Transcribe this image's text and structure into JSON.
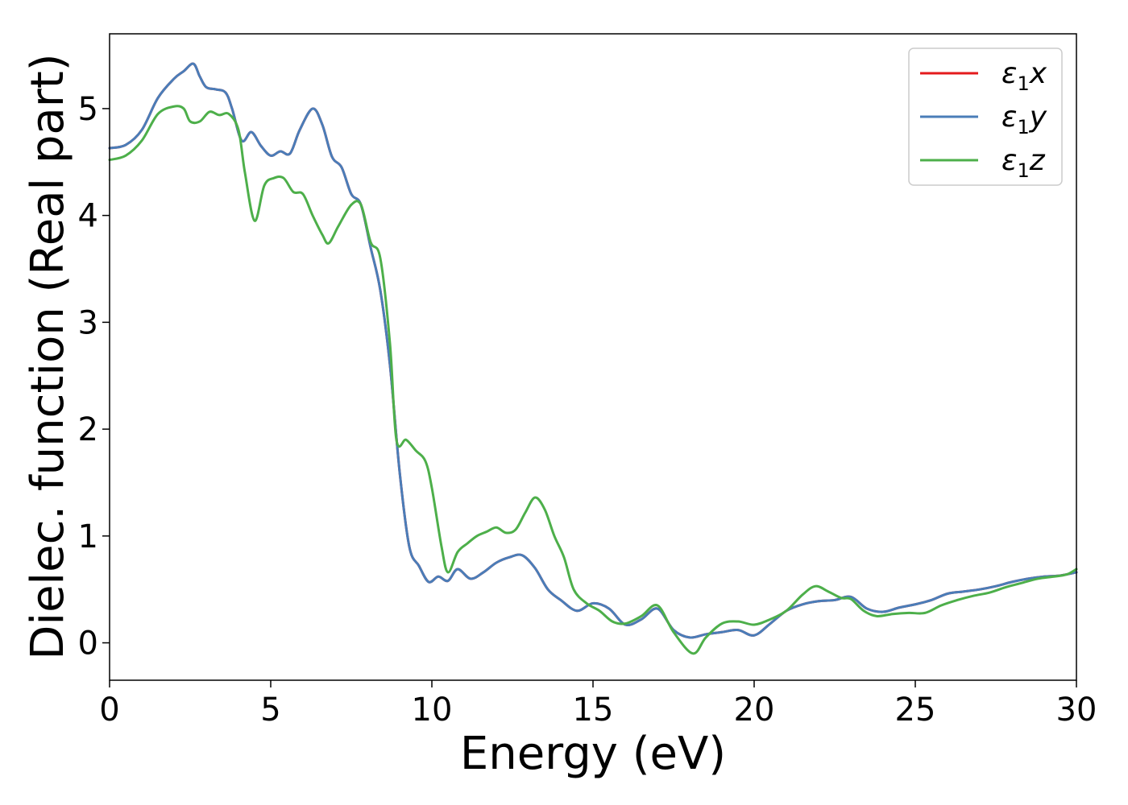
{
  "chart_data": {
    "type": "line",
    "xlabel": "Energy (eV)",
    "ylabel": "Dielec. function (Real part)",
    "xlim": [
      0,
      30
    ],
    "ylim": [
      -0.35,
      5.7
    ],
    "xticks": [
      0,
      5,
      10,
      15,
      20,
      25,
      30
    ],
    "yticks": [
      0,
      1,
      2,
      3,
      4,
      5
    ],
    "grid": false,
    "legend_position": "top-right",
    "series": [
      {
        "name": "ε₁x",
        "legend_main": "ε",
        "legend_sub": "1",
        "legend_suffix": "x",
        "color": "#e41a1c",
        "x": [
          0,
          0.5,
          1,
          1.5,
          2,
          2.3,
          2.6,
          2.8,
          3,
          3.3,
          3.6,
          3.8,
          4.1,
          4.4,
          4.7,
          5.0,
          5.3,
          5.6,
          5.9,
          6.3,
          6.6,
          6.9,
          7.2,
          7.5,
          7.8,
          8.1,
          8.4,
          8.7,
          9.0,
          9.3,
          9.6,
          9.9,
          10.2,
          10.5,
          10.8,
          11.2,
          11.6,
          12.0,
          12.4,
          12.8,
          13.2,
          13.6,
          14.0,
          14.5,
          15.0,
          15.5,
          16.0,
          16.5,
          17.0,
          17.5,
          18.0,
          18.5,
          19.0,
          19.5,
          20.0,
          20.5,
          21.0,
          21.5,
          22.0,
          22.5,
          23.0,
          23.5,
          24.0,
          24.5,
          25.0,
          25.5,
          26.0,
          26.5,
          27.0,
          27.5,
          28.0,
          28.5,
          29.0,
          29.5,
          30.0
        ],
        "y": [
          4.63,
          4.66,
          4.8,
          5.1,
          5.28,
          5.35,
          5.42,
          5.3,
          5.2,
          5.18,
          5.15,
          5.0,
          4.7,
          4.78,
          4.65,
          4.56,
          4.6,
          4.58,
          4.8,
          5.0,
          4.85,
          4.55,
          4.45,
          4.2,
          4.1,
          3.7,
          3.3,
          2.6,
          1.6,
          0.9,
          0.72,
          0.57,
          0.62,
          0.58,
          0.69,
          0.6,
          0.66,
          0.75,
          0.8,
          0.82,
          0.7,
          0.5,
          0.4,
          0.3,
          0.37,
          0.32,
          0.17,
          0.22,
          0.32,
          0.12,
          0.05,
          0.08,
          0.1,
          0.12,
          0.07,
          0.18,
          0.3,
          0.36,
          0.39,
          0.4,
          0.43,
          0.32,
          0.29,
          0.33,
          0.36,
          0.4,
          0.46,
          0.48,
          0.5,
          0.53,
          0.57,
          0.6,
          0.62,
          0.63,
          0.66
        ]
      },
      {
        "name": "ε₁y",
        "legend_main": "ε",
        "legend_sub": "1",
        "legend_suffix": "y",
        "color": "#4a7db8",
        "x": [
          0,
          0.5,
          1,
          1.5,
          2,
          2.3,
          2.6,
          2.8,
          3,
          3.3,
          3.6,
          3.8,
          4.1,
          4.4,
          4.7,
          5.0,
          5.3,
          5.6,
          5.9,
          6.3,
          6.6,
          6.9,
          7.2,
          7.5,
          7.8,
          8.1,
          8.4,
          8.7,
          9.0,
          9.3,
          9.6,
          9.9,
          10.2,
          10.5,
          10.8,
          11.2,
          11.6,
          12.0,
          12.4,
          12.8,
          13.2,
          13.6,
          14.0,
          14.5,
          15.0,
          15.5,
          16.0,
          16.5,
          17.0,
          17.5,
          18.0,
          18.5,
          19.0,
          19.5,
          20.0,
          20.5,
          21.0,
          21.5,
          22.0,
          22.5,
          23.0,
          23.5,
          24.0,
          24.5,
          25.0,
          25.5,
          26.0,
          26.5,
          27.0,
          27.5,
          28.0,
          28.5,
          29.0,
          29.5,
          30.0
        ],
        "y": [
          4.63,
          4.66,
          4.8,
          5.1,
          5.28,
          5.35,
          5.42,
          5.3,
          5.2,
          5.18,
          5.15,
          5.0,
          4.7,
          4.78,
          4.65,
          4.56,
          4.6,
          4.58,
          4.8,
          5.0,
          4.85,
          4.55,
          4.45,
          4.2,
          4.1,
          3.7,
          3.3,
          2.6,
          1.6,
          0.9,
          0.72,
          0.57,
          0.62,
          0.58,
          0.69,
          0.6,
          0.66,
          0.75,
          0.8,
          0.82,
          0.7,
          0.5,
          0.4,
          0.3,
          0.37,
          0.32,
          0.17,
          0.22,
          0.32,
          0.12,
          0.05,
          0.08,
          0.1,
          0.12,
          0.07,
          0.18,
          0.3,
          0.36,
          0.39,
          0.4,
          0.43,
          0.32,
          0.29,
          0.33,
          0.36,
          0.4,
          0.46,
          0.48,
          0.5,
          0.53,
          0.57,
          0.6,
          0.62,
          0.63,
          0.66
        ]
      },
      {
        "name": "ε₁z",
        "legend_main": "ε",
        "legend_sub": "1",
        "legend_suffix": "z",
        "color": "#4daf4a",
        "x": [
          0,
          0.5,
          1,
          1.5,
          2,
          2.3,
          2.5,
          2.8,
          3.1,
          3.4,
          3.7,
          4.0,
          4.2,
          4.5,
          4.8,
          5.1,
          5.4,
          5.7,
          6.0,
          6.3,
          6.6,
          6.8,
          7.1,
          7.5,
          7.8,
          8.1,
          8.4,
          8.7,
          8.9,
          9.2,
          9.5,
          9.8,
          10.0,
          10.3,
          10.5,
          10.8,
          11.1,
          11.4,
          11.7,
          12.0,
          12.3,
          12.6,
          12.9,
          13.2,
          13.5,
          13.8,
          14.1,
          14.4,
          14.8,
          15.2,
          15.6,
          16.0,
          16.5,
          17.0,
          17.5,
          18.1,
          18.5,
          19.0,
          19.5,
          20.0,
          20.5,
          21.0,
          21.5,
          21.9,
          22.3,
          22.7,
          23.0,
          23.4,
          23.8,
          24.3,
          24.8,
          25.3,
          25.8,
          26.3,
          26.8,
          27.3,
          27.8,
          28.3,
          28.8,
          29.3,
          29.7,
          30.0
        ],
        "y": [
          4.52,
          4.56,
          4.7,
          4.95,
          5.02,
          5.0,
          4.88,
          4.88,
          4.97,
          4.94,
          4.95,
          4.8,
          4.4,
          3.95,
          4.28,
          4.35,
          4.35,
          4.22,
          4.2,
          4.0,
          3.82,
          3.74,
          3.9,
          4.1,
          4.1,
          3.75,
          3.6,
          2.8,
          1.9,
          1.9,
          1.8,
          1.7,
          1.45,
          0.9,
          0.66,
          0.85,
          0.93,
          1.0,
          1.04,
          1.08,
          1.03,
          1.06,
          1.22,
          1.36,
          1.25,
          1.0,
          0.8,
          0.5,
          0.37,
          0.3,
          0.2,
          0.18,
          0.25,
          0.35,
          0.1,
          -0.1,
          0.05,
          0.18,
          0.2,
          0.17,
          0.22,
          0.3,
          0.45,
          0.53,
          0.48,
          0.42,
          0.41,
          0.3,
          0.25,
          0.27,
          0.28,
          0.28,
          0.35,
          0.4,
          0.44,
          0.47,
          0.52,
          0.56,
          0.6,
          0.62,
          0.64,
          0.69
        ]
      }
    ]
  }
}
